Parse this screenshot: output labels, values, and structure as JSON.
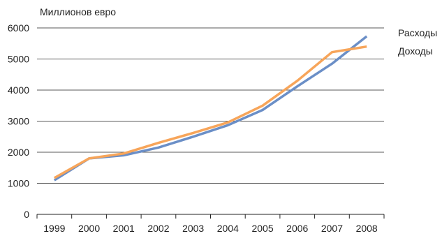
{
  "chart_data": {
    "type": "line",
    "ylabel": "Миллионов евро",
    "x": [
      "1999",
      "2000",
      "2001",
      "2002",
      "2003",
      "2004",
      "2005",
      "2006",
      "2007",
      "2008"
    ],
    "ylim": [
      0,
      6000
    ],
    "yticks": [
      "0",
      "1000",
      "2000",
      "3000",
      "4000",
      "5000",
      "6000"
    ],
    "grid": "horizontal",
    "legend_position": "top-right",
    "series": [
      {
        "name": "Расходы",
        "color": "#6b8fc7",
        "values": [
          1100,
          1800,
          1900,
          2150,
          2500,
          2870,
          3360,
          4120,
          4850,
          5730
        ]
      },
      {
        "name": "Доходы",
        "color": "#f7a55a",
        "values": [
          1170,
          1800,
          1960,
          2300,
          2620,
          2960,
          3500,
          4300,
          5220,
          5400
        ]
      }
    ]
  }
}
